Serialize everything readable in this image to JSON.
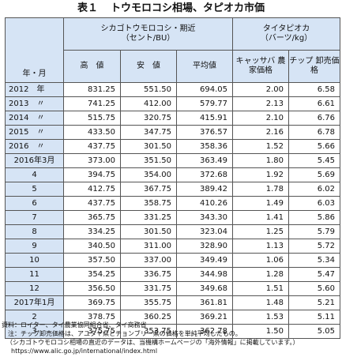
{
  "title": {
    "number": "表１",
    "text": "トウモロコシ相場、タピオカ市価"
  },
  "headers": {
    "year_month": "年・月",
    "corn_group": "シカゴトウモロコシ・期近",
    "corn_unit": "（セント/BU）",
    "tapioca_group": "タイタピオカ",
    "tapioca_unit": "（バーツ/kg）",
    "high": "高　値",
    "low": "安　値",
    "avg": "平均値",
    "cassava": "キャッサバ 農家価格",
    "chip": "チップ 卸売価格"
  },
  "rows": [
    {
      "label": "2012　年",
      "high": "831.25",
      "low": "551.50",
      "avg": "694.05",
      "cassava": "2.00",
      "chip": "6.58",
      "group_start": true,
      "align": "left"
    },
    {
      "label": "2013　〃",
      "high": "741.25",
      "low": "412.00",
      "avg": "579.77",
      "cassava": "2.13",
      "chip": "6.61",
      "align": "left"
    },
    {
      "label": "2014　〃",
      "high": "515.75",
      "low": "320.75",
      "avg": "415.91",
      "cassava": "2.10",
      "chip": "6.76",
      "align": "left"
    },
    {
      "label": "2015　〃",
      "high": "433.50",
      "low": "347.75",
      "avg": "376.57",
      "cassava": "2.16",
      "chip": "6.78",
      "align": "left"
    },
    {
      "label": "2016　〃",
      "high": "437.75",
      "low": "301.50",
      "avg": "358.36",
      "cassava": "1.52",
      "chip": "5.66",
      "align": "left"
    },
    {
      "label": "2016年3月",
      "high": "373.00",
      "low": "351.50",
      "avg": "363.49",
      "cassava": "1.80",
      "chip": "5.45",
      "group_start": true
    },
    {
      "label": "4",
      "high": "394.75",
      "low": "354.00",
      "avg": "372.68",
      "cassava": "1.92",
      "chip": "5.69"
    },
    {
      "label": "5",
      "high": "412.75",
      "low": "367.75",
      "avg": "389.42",
      "cassava": "1.78",
      "chip": "6.02"
    },
    {
      "label": "6",
      "high": "437.75",
      "low": "358.75",
      "avg": "410.26",
      "cassava": "1.49",
      "chip": "6.03"
    },
    {
      "label": "7",
      "high": "365.75",
      "low": "331.25",
      "avg": "343.30",
      "cassava": "1.41",
      "chip": "5.86"
    },
    {
      "label": "8",
      "high": "334.25",
      "low": "301.50",
      "avg": "323.04",
      "cassava": "1.25",
      "chip": "5.79"
    },
    {
      "label": "9",
      "high": "340.50",
      "low": "311.00",
      "avg": "328.90",
      "cassava": "1.13",
      "chip": "5.72"
    },
    {
      "label": "10",
      "high": "357.50",
      "low": "337.00",
      "avg": "349.49",
      "cassava": "1.06",
      "chip": "5.34"
    },
    {
      "label": "11",
      "high": "354.25",
      "low": "336.75",
      "avg": "344.98",
      "cassava": "1.28",
      "chip": "5.47"
    },
    {
      "label": "12",
      "high": "356.50",
      "low": "331.75",
      "avg": "349.68",
      "cassava": "1.51",
      "chip": "5.60"
    },
    {
      "label": "2017年1月",
      "high": "369.75",
      "low": "355.75",
      "avg": "361.81",
      "cassava": "1.48",
      "chip": "5.21",
      "group_start": true
    },
    {
      "label": "2",
      "high": "378.75",
      "low": "360.25",
      "avg": "369.21",
      "cassava": "1.53",
      "chip": "5.11"
    },
    {
      "label": "3",
      "high": "375.75",
      "low": "353.75",
      "avg": "362.78",
      "cassava": "1.50",
      "chip": "5.05"
    }
  ],
  "notes": {
    "source": "資料：ロイター、タイ農業協同組合省、タイ商務省",
    "note": "注：チップ卸売価格は、アユタヤ県とチョンブリー県の価格を単純平均したもの。",
    "info1": "（シカゴトウモロコシ相場の直近のデータは、当機構ホームページの「海外情報」に掲載しています。）",
    "url": "https://www.alic.go.jp/international/index.html"
  }
}
